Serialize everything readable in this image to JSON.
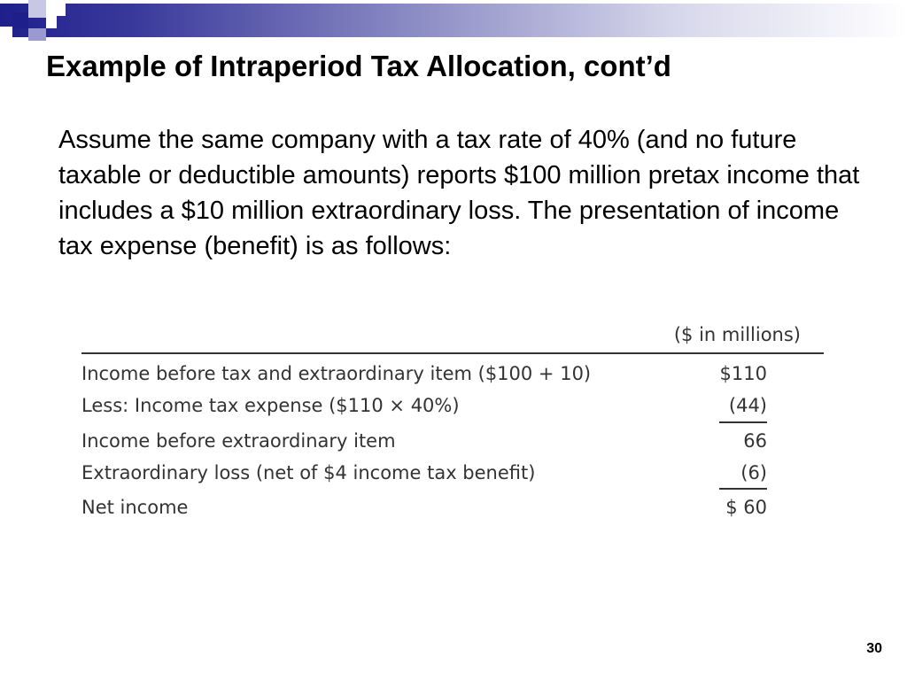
{
  "slide": {
    "title": "Example of Intraperiod Tax Allocation, cont’d",
    "body": "Assume the same company with a tax rate of 40% (and no future taxable or deductible amounts) reports $100 million pretax income that includes a $10 million extraordinary loss. The presentation of income tax expense (benefit) is as follows:",
    "page_number": "30"
  },
  "table": {
    "unit_header": "($ in millions)",
    "rows": [
      {
        "label": "Income before tax and extraordinary item ($100 + 10)",
        "value": "$110"
      },
      {
        "label": "Less: Income tax expense ($110 × 40%)",
        "value": "(44)"
      },
      {
        "label": "Income before extraordinary item",
        "value": "66"
      },
      {
        "label": "Extraordinary loss (net of $4 income tax benefit)",
        "value": "(6)"
      },
      {
        "label": "Net income",
        "value": "$  60"
      }
    ]
  },
  "colors": {
    "accent": "#1f1f8c",
    "text": "#000000",
    "table_text": "#333333"
  }
}
